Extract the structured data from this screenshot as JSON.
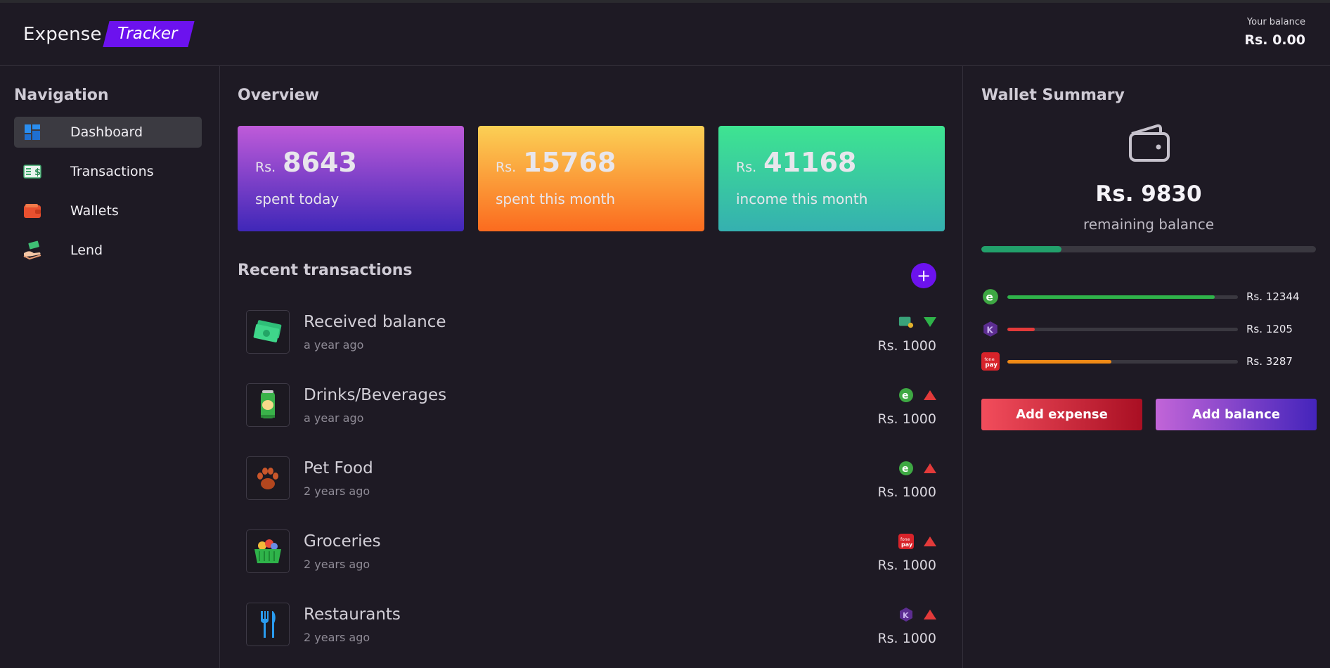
{
  "app": {
    "brand_main": "Expense",
    "brand_accent": "Tracker",
    "accent_color": "#6c12ee"
  },
  "header": {
    "balance_label": "Your balance",
    "balance_value": "Rs. 0.00"
  },
  "nav": {
    "title": "Navigation",
    "items": [
      {
        "label": "Dashboard",
        "icon": "dashboard-icon",
        "active": true
      },
      {
        "label": "Transactions",
        "icon": "bill-icon"
      },
      {
        "label": "Wallets",
        "icon": "wallet-icon"
      },
      {
        "label": "Lend",
        "icon": "lend-hand-icon"
      }
    ]
  },
  "overview": {
    "title": "Overview",
    "cards": [
      {
        "currency": "Rs.",
        "value": "8643",
        "caption": "spent today"
      },
      {
        "currency": "Rs.",
        "value": "15768",
        "caption": "spent this month"
      },
      {
        "currency": "Rs.",
        "value": "41168",
        "caption": "income this month"
      }
    ]
  },
  "recent": {
    "title": "Recent transactions",
    "add_label": "+",
    "items": [
      {
        "name": "Received balance",
        "time": "a year ago",
        "amount": "Rs. 1000",
        "direction": "income",
        "wallet": "cash-wallet-icon",
        "icon": "money-icon"
      },
      {
        "name": "Drinks/Beverages",
        "time": "a year ago",
        "amount": "Rs. 1000",
        "direction": "expense",
        "wallet": "esewa-icon",
        "icon": "drink-can-icon"
      },
      {
        "name": "Pet Food",
        "time": "2 years ago",
        "amount": "Rs. 1000",
        "direction": "expense",
        "wallet": "esewa-icon",
        "icon": "paw-icon"
      },
      {
        "name": "Groceries",
        "time": "2 years ago",
        "amount": "Rs. 1000",
        "direction": "expense",
        "wallet": "fonepay-icon",
        "icon": "basket-icon"
      },
      {
        "name": "Restaurants",
        "time": "2 years ago",
        "amount": "Rs. 1000",
        "direction": "expense",
        "wallet": "khalti-icon",
        "icon": "fork-knife-icon"
      }
    ]
  },
  "wallet_summary": {
    "title": "Wallet Summary",
    "remaining_amount": "Rs. 9830",
    "remaining_label": "remaining balance",
    "remaining_fraction": 0.24,
    "wallets": [
      {
        "icon": "esewa-icon",
        "amount": "Rs. 12344",
        "fraction": 0.9,
        "color": "#2fb34a"
      },
      {
        "icon": "khalti-icon",
        "amount": "Rs. 1205",
        "fraction": 0.12,
        "color": "#e33a3a"
      },
      {
        "icon": "fonepay-icon",
        "amount": "Rs. 3287",
        "fraction": 0.45,
        "color": "#f08a16"
      }
    ],
    "add_expense_label": "Add expense",
    "add_balance_label": "Add balance"
  }
}
